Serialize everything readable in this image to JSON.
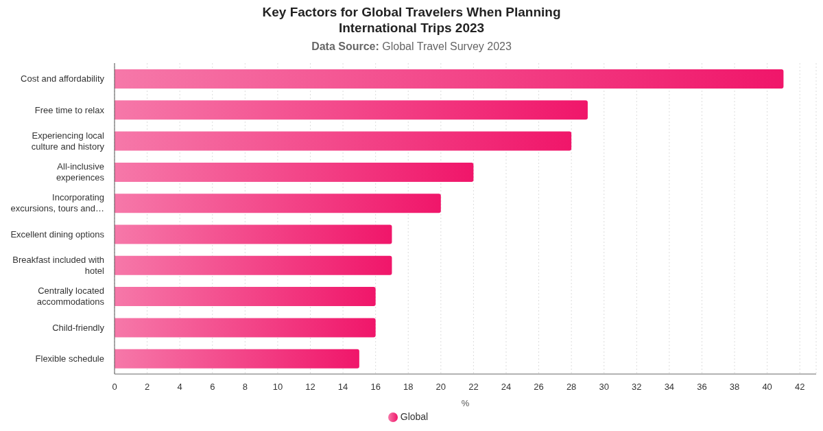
{
  "chart_data": {
    "type": "bar",
    "orientation": "horizontal",
    "title": "Key Factors for Global Travelers When Planning International Trips 2023",
    "subtitle": "Data Source: Global Travel Survey 2023",
    "xlabel": "%",
    "categories": [
      "Cost and affordability",
      "Free time to relax",
      "Experiencing local culture and history",
      "All-inclusive experiences",
      "Incorporating excursions, tours and…",
      "Excellent dining options",
      "Breakfast included with hotel",
      "Centrally located accommodations",
      "Child-friendly",
      "Flexible schedule"
    ],
    "series": [
      {
        "name": "Global",
        "color": "#f0166a",
        "values": [
          41,
          29,
          28,
          22,
          20,
          17,
          17,
          16,
          16,
          15
        ]
      }
    ],
    "xlim": [
      0,
      43
    ],
    "xticks": [
      0,
      2,
      4,
      6,
      8,
      10,
      12,
      14,
      16,
      18,
      20,
      22,
      24,
      26,
      28,
      30,
      32,
      34,
      36,
      38,
      40,
      42
    ],
    "grid": "x",
    "legend": "bottom"
  }
}
